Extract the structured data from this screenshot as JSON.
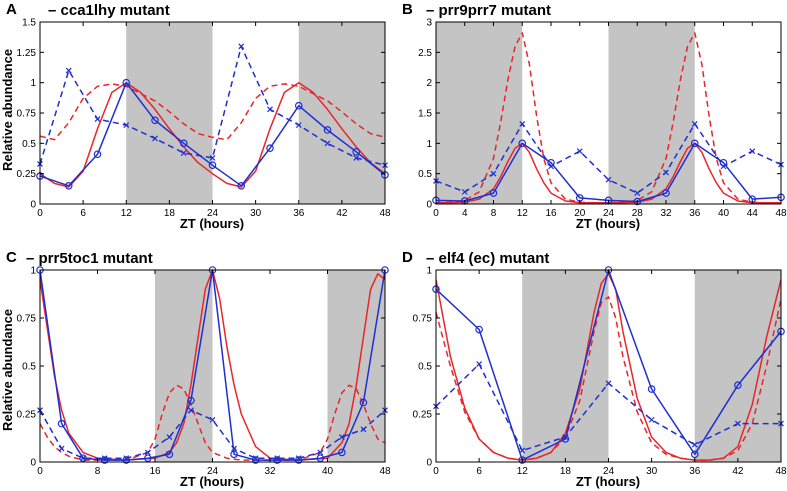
{
  "colors": {
    "red": "#e8262a",
    "blue": "#1f2fd0",
    "dark_shade": "#c4c4c4",
    "axis": "#000000"
  },
  "chart_data": [
    {
      "panel": "A",
      "type": "line",
      "title": "– cca1lhy mutant",
      "xlabel": "ZT (hours)",
      "ylabel": "Relative abundance",
      "xlim": [
        0,
        48
      ],
      "ylim": [
        0,
        1.5
      ],
      "xticks": [
        0,
        6,
        12,
        18,
        24,
        30,
        36,
        42,
        48
      ],
      "yticks": [
        0,
        0.25,
        0.5,
        0.75,
        1,
        1.25,
        1.5
      ],
      "ytick_labels": [
        "0",
        "0.25",
        "0.5",
        "0.75",
        "1",
        "1.25",
        "1.5"
      ],
      "grid": false,
      "dark_intervals": [
        [
          12,
          24
        ],
        [
          36,
          48
        ]
      ],
      "series": [
        {
          "color": "red",
          "style": "solid",
          "marker": "none",
          "x": [
            0,
            2,
            4,
            6,
            8,
            10,
            12,
            14,
            16,
            18,
            20,
            22,
            24,
            26,
            28,
            30,
            32,
            34,
            36,
            38,
            40,
            42,
            44,
            46,
            48
          ],
          "y": [
            0.25,
            0.17,
            0.14,
            0.27,
            0.62,
            0.92,
            1.0,
            0.92,
            0.78,
            0.62,
            0.47,
            0.34,
            0.25,
            0.17,
            0.14,
            0.27,
            0.62,
            0.92,
            1.0,
            0.92,
            0.78,
            0.62,
            0.47,
            0.34,
            0.25
          ]
        },
        {
          "color": "red",
          "style": "dashed",
          "marker": "none",
          "x": [
            0,
            2,
            4,
            6,
            8,
            10,
            12,
            14,
            16,
            18,
            20,
            22,
            24,
            26,
            28,
            30,
            32,
            34,
            36,
            38,
            40,
            42,
            44,
            46,
            48
          ],
          "y": [
            0.56,
            0.53,
            0.67,
            0.87,
            0.97,
            0.99,
            0.97,
            0.91,
            0.85,
            0.76,
            0.66,
            0.58,
            0.55,
            0.53,
            0.67,
            0.87,
            0.97,
            0.99,
            0.97,
            0.91,
            0.85,
            0.76,
            0.66,
            0.58,
            0.55
          ]
        },
        {
          "color": "blue",
          "style": "solid",
          "marker": "circle",
          "x": [
            0,
            4,
            8,
            12,
            16,
            20,
            24,
            28,
            32,
            36,
            40,
            44,
            48
          ],
          "y": [
            0.23,
            0.15,
            0.41,
            1.0,
            0.69,
            0.5,
            0.32,
            0.15,
            0.46,
            0.81,
            0.61,
            0.43,
            0.24
          ]
        },
        {
          "color": "blue",
          "style": "dashed",
          "marker": "x",
          "x": [
            0,
            4,
            8,
            12,
            16,
            20,
            24,
            28,
            32,
            36,
            40,
            44,
            48
          ],
          "y": [
            0.33,
            1.1,
            0.7,
            0.65,
            0.54,
            0.42,
            0.38,
            1.3,
            0.78,
            0.65,
            0.5,
            0.38,
            0.32
          ]
        }
      ]
    },
    {
      "panel": "B",
      "type": "line",
      "title": "– prr9prr7 mutant",
      "xlabel": "ZT (hours)",
      "ylabel": "",
      "xlim": [
        0,
        48
      ],
      "ylim": [
        0,
        3
      ],
      "xticks": [
        0,
        4,
        8,
        12,
        16,
        20,
        24,
        28,
        32,
        36,
        40,
        44,
        48
      ],
      "yticks": [
        0,
        0.5,
        1,
        1.5,
        2,
        2.5,
        3
      ],
      "ytick_labels": [
        "0",
        "0.5",
        "1",
        "1.5",
        "2",
        "2.5",
        "3"
      ],
      "grid": false,
      "dark_intervals": [
        [
          0,
          12
        ],
        [
          24,
          36
        ]
      ],
      "series": [
        {
          "color": "red",
          "style": "solid",
          "marker": "none",
          "x": [
            0,
            2,
            4,
            6,
            8,
            9,
            10,
            11,
            12,
            13,
            14,
            15,
            16,
            18,
            20,
            22,
            24,
            26,
            28,
            30,
            32,
            33,
            34,
            35,
            36,
            37,
            38,
            39,
            40,
            42,
            44,
            46,
            48
          ],
          "y": [
            0.02,
            0.02,
            0.03,
            0.08,
            0.25,
            0.45,
            0.7,
            0.92,
            1.0,
            0.85,
            0.58,
            0.35,
            0.18,
            0.05,
            0.02,
            0.02,
            0.02,
            0.02,
            0.03,
            0.08,
            0.25,
            0.45,
            0.7,
            0.92,
            1.0,
            0.85,
            0.58,
            0.35,
            0.18,
            0.05,
            0.02,
            0.02,
            0.02
          ]
        },
        {
          "color": "red",
          "style": "dashed",
          "marker": "none",
          "x": [
            0,
            2,
            4,
            6,
            8,
            9,
            10,
            11,
            12,
            13,
            14,
            15,
            16,
            18,
            20,
            22,
            24,
            26,
            28,
            30,
            32,
            33,
            34,
            35,
            36,
            37,
            38,
            39,
            40,
            42,
            44,
            46,
            48
          ],
          "y": [
            0.02,
            0.03,
            0.06,
            0.2,
            0.75,
            1.35,
            2.05,
            2.6,
            2.82,
            2.3,
            1.45,
            0.75,
            0.35,
            0.08,
            0.03,
            0.02,
            0.02,
            0.03,
            0.06,
            0.2,
            0.75,
            1.35,
            2.05,
            2.6,
            2.82,
            2.3,
            1.45,
            0.75,
            0.35,
            0.08,
            0.03,
            0.02,
            0.02
          ]
        },
        {
          "color": "blue",
          "style": "solid",
          "marker": "circle",
          "x": [
            0,
            4,
            8,
            12,
            16,
            20,
            24,
            28,
            32,
            36,
            40,
            44,
            48
          ],
          "y": [
            0.06,
            0.05,
            0.18,
            1.0,
            0.68,
            0.1,
            0.06,
            0.04,
            0.18,
            1.0,
            0.68,
            0.08,
            0.11
          ]
        },
        {
          "color": "blue",
          "style": "dashed",
          "marker": "x",
          "x": [
            0,
            4,
            8,
            12,
            16,
            20,
            24,
            28,
            32,
            36,
            40,
            44,
            48
          ],
          "y": [
            0.38,
            0.2,
            0.5,
            1.32,
            0.62,
            0.87,
            0.4,
            0.18,
            0.52,
            1.32,
            0.62,
            0.87,
            0.65
          ]
        }
      ]
    },
    {
      "panel": "C",
      "type": "line",
      "title": "– prr5toc1 mutant",
      "xlabel": "ZT (hours)",
      "ylabel": "Relative abundance",
      "xlim": [
        0,
        48
      ],
      "ylim": [
        0,
        1
      ],
      "xticks": [
        0,
        8,
        16,
        24,
        32,
        40,
        48
      ],
      "yticks": [
        0,
        0.25,
        0.5,
        0.75,
        1
      ],
      "ytick_labels": [
        "0",
        "0.25",
        "0.5",
        "0.75",
        "1"
      ],
      "grid": false,
      "dark_intervals": [
        [
          16,
          24
        ],
        [
          40,
          48
        ]
      ],
      "series": [
        {
          "color": "red",
          "style": "solid",
          "marker": "none",
          "x": [
            0,
            1,
            2,
            3,
            4,
            6,
            8,
            12,
            16,
            18,
            19,
            20,
            21,
            22,
            23,
            24,
            25,
            26,
            27,
            28,
            30,
            32,
            36,
            40,
            42,
            43,
            44,
            45,
            46,
            47,
            48
          ],
          "y": [
            0.95,
            0.7,
            0.45,
            0.27,
            0.15,
            0.05,
            0.02,
            0.01,
            0.02,
            0.05,
            0.1,
            0.2,
            0.4,
            0.65,
            0.9,
            1.0,
            0.85,
            0.6,
            0.4,
            0.25,
            0.08,
            0.02,
            0.01,
            0.02,
            0.1,
            0.2,
            0.4,
            0.65,
            0.9,
            0.98,
            0.95
          ]
        },
        {
          "color": "red",
          "style": "dashed",
          "marker": "none",
          "x": [
            0,
            1,
            2,
            3,
            4,
            6,
            8,
            12,
            15,
            16,
            17,
            18,
            19,
            20,
            21,
            22,
            23,
            24,
            26,
            28,
            32,
            36,
            39,
            40,
            41,
            42,
            43,
            44,
            45,
            46,
            47,
            48
          ],
          "y": [
            0.2,
            0.13,
            0.08,
            0.05,
            0.03,
            0.01,
            0.01,
            0.01,
            0.05,
            0.12,
            0.25,
            0.36,
            0.4,
            0.38,
            0.3,
            0.2,
            0.1,
            0.05,
            0.02,
            0.01,
            0.01,
            0.01,
            0.05,
            0.12,
            0.25,
            0.36,
            0.4,
            0.38,
            0.3,
            0.2,
            0.12,
            0.1
          ]
        },
        {
          "color": "blue",
          "style": "solid",
          "marker": "circle",
          "x": [
            0,
            3,
            6,
            9,
            12,
            15,
            18,
            21,
            24,
            27,
            30,
            33,
            36,
            39,
            42,
            45,
            48
          ],
          "y": [
            1.0,
            0.2,
            0.02,
            0.01,
            0.01,
            0.02,
            0.04,
            0.32,
            1.0,
            0.04,
            0.01,
            0.01,
            0.01,
            0.02,
            0.05,
            0.31,
            1.0
          ]
        },
        {
          "color": "blue",
          "style": "dashed",
          "marker": "x",
          "x": [
            0,
            3,
            6,
            9,
            12,
            15,
            18,
            21,
            24,
            27,
            30,
            33,
            36,
            39,
            42,
            45,
            48
          ],
          "y": [
            0.27,
            0.07,
            0.02,
            0.02,
            0.02,
            0.05,
            0.13,
            0.27,
            0.22,
            0.07,
            0.02,
            0.02,
            0.02,
            0.05,
            0.13,
            0.17,
            0.27
          ]
        }
      ]
    },
    {
      "panel": "D",
      "type": "line",
      "title": "– elf4 (ec) mutant",
      "xlabel": "ZT (hours)",
      "ylabel": "",
      "xlim": [
        0,
        48
      ],
      "ylim": [
        0,
        1
      ],
      "xticks": [
        0,
        6,
        12,
        18,
        24,
        30,
        36,
        42,
        48
      ],
      "yticks": [
        0,
        0.25,
        0.5,
        0.75,
        1
      ],
      "ytick_labels": [
        "0",
        "0.25",
        "0.5",
        "0.75",
        "1"
      ],
      "grid": false,
      "dark_intervals": [
        [
          12,
          24
        ],
        [
          36,
          48
        ]
      ],
      "series": [
        {
          "color": "red",
          "style": "solid",
          "marker": "none",
          "x": [
            0,
            2,
            4,
            6,
            8,
            10,
            12,
            14,
            16,
            18,
            20,
            22,
            23,
            24,
            25,
            26,
            28,
            30,
            32,
            34,
            36,
            38,
            40,
            42,
            44,
            46,
            48
          ],
          "y": [
            0.95,
            0.55,
            0.28,
            0.12,
            0.05,
            0.02,
            0.01,
            0.02,
            0.05,
            0.15,
            0.38,
            0.78,
            0.93,
            0.98,
            0.9,
            0.68,
            0.33,
            0.13,
            0.05,
            0.02,
            0.01,
            0.01,
            0.02,
            0.08,
            0.3,
            0.65,
            0.95
          ]
        },
        {
          "color": "red",
          "style": "dashed",
          "marker": "none",
          "x": [
            0,
            2,
            4,
            6,
            8,
            10,
            12,
            14,
            16,
            18,
            20,
            22,
            23,
            24,
            25,
            26,
            28,
            30,
            32,
            34,
            36,
            38,
            40,
            42,
            44,
            46,
            48
          ],
          "y": [
            0.78,
            0.5,
            0.26,
            0.12,
            0.05,
            0.02,
            0.01,
            0.02,
            0.05,
            0.13,
            0.32,
            0.68,
            0.83,
            0.86,
            0.75,
            0.55,
            0.26,
            0.1,
            0.04,
            0.02,
            0.01,
            0.01,
            0.02,
            0.06,
            0.2,
            0.5,
            0.85
          ]
        },
        {
          "color": "blue",
          "style": "solid",
          "marker": "circle",
          "x": [
            0,
            6,
            12,
            18,
            24,
            30,
            36,
            42,
            48
          ],
          "y": [
            0.9,
            0.69,
            0.01,
            0.12,
            1.0,
            0.38,
            0.04,
            0.4,
            0.68
          ]
        },
        {
          "color": "blue",
          "style": "dashed",
          "marker": "x",
          "x": [
            0,
            6,
            12,
            18,
            24,
            30,
            36,
            42,
            48
          ],
          "y": [
            0.29,
            0.51,
            0.06,
            0.13,
            0.41,
            0.22,
            0.09,
            0.2,
            0.2
          ]
        }
      ]
    }
  ]
}
